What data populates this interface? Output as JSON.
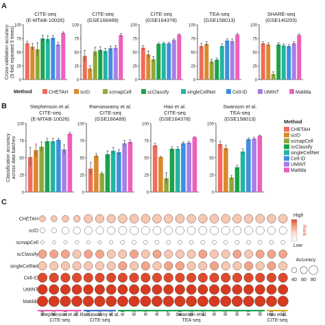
{
  "panel_letters": {
    "a": "A",
    "b": "B",
    "c": "C"
  },
  "methods": [
    "CHETAH",
    "scID",
    "scmapCell",
    "scClassify",
    "singleCellNet",
    "Cell-ID",
    "UMINT",
    "Matilda"
  ],
  "method_colors": [
    "#f26b5b",
    "#d98a2b",
    "#8fa83a",
    "#1aa34a",
    "#22b5a2",
    "#3d8fe0",
    "#a77fe6",
    "#ee5fba"
  ],
  "legend_a": {
    "title": "Method"
  },
  "legend_b": {
    "title": "Method"
  },
  "chart_data": [
    {
      "type": "bar",
      "panel": "A",
      "ylabel": "Cross-validation accuracy\n(5-fold repeated 5 times)",
      "ylim": [
        0,
        100
      ],
      "yticks": [
        0,
        25,
        50,
        75,
        100
      ],
      "grid": false,
      "legend": "bottom",
      "groups": [
        {
          "title": [
            "CITE-seq",
            "(E-MTAB-10026)"
          ],
          "values": [
            66,
            60,
            55,
            75,
            74,
            76,
            64,
            85
          ],
          "errors": [
            4,
            6,
            12,
            6,
            6,
            4,
            4,
            2
          ]
        },
        {
          "title": [
            "CITE-seq",
            "(GSE166489)"
          ],
          "values": [
            43,
            20,
            51,
            54,
            52,
            57,
            58,
            81
          ],
          "errors": [
            10,
            5,
            8,
            6,
            5,
            4,
            4,
            3
          ]
        },
        {
          "title": [
            "CITE-seq",
            "(GSE164378)"
          ],
          "values": [
            58,
            46,
            37,
            65,
            66,
            66,
            72,
            82
          ],
          "errors": [
            4,
            6,
            5,
            2,
            2,
            2,
            2,
            1
          ]
        },
        {
          "title": [
            "TEA-seq",
            "(GSE158013)"
          ],
          "values": [
            61,
            65,
            33,
            36,
            61,
            71,
            70,
            82
          ],
          "errors": [
            5,
            4,
            4,
            3,
            4,
            3,
            4,
            2
          ]
        },
        {
          "title": [
            "SHARE-seq",
            "(GSE140203)"
          ],
          "values": [
            66,
            64,
            10,
            64,
            62,
            61,
            66,
            81
          ],
          "errors": [
            3,
            3,
            4,
            3,
            3,
            3,
            3,
            2
          ]
        }
      ]
    },
    {
      "type": "bar",
      "panel": "B",
      "ylabel": "Classification accuracy\nacross data batches",
      "ylim": [
        0,
        100
      ],
      "yticks": [
        0,
        25,
        50,
        75,
        100
      ],
      "grid": false,
      "legend": "right",
      "groups": [
        {
          "title": [
            "Stephenson et al.",
            "CITE-seq",
            "(E-MTAB-10026)"
          ],
          "values": [
            51,
            61,
            66,
            74,
            74,
            76,
            62,
            85
          ],
          "errors": [
            14,
            9,
            7,
            4,
            4,
            2,
            7,
            2
          ]
        },
        {
          "title": [
            "Ramaswamy et al.",
            "CITE-seq",
            "(GSE166489)"
          ],
          "values": [
            34,
            53,
            27,
            55,
            60,
            58,
            71,
            73
          ],
          "errors": [
            9,
            3,
            2,
            5,
            5,
            4,
            4,
            3
          ]
        },
        {
          "title": [
            "Hao et al.",
            "CITE-seq",
            "(GSE164378)"
          ],
          "values": [
            68,
            51,
            20,
            63,
            63,
            71,
            72,
            80
          ],
          "errors": [
            3,
            1,
            8,
            3,
            3,
            2,
            2,
            1
          ]
        },
        {
          "title": [
            "Swanson et al.",
            "TEA-seq",
            "(GSE158013)"
          ],
          "values": [
            70,
            64,
            21,
            36,
            59,
            77,
            78,
            82
          ],
          "errors": [
            4,
            4,
            3,
            3,
            4,
            2,
            2,
            1
          ]
        }
      ]
    },
    {
      "type": "heatmap",
      "panel": "C",
      "rows": [
        "CHETAH",
        "scID",
        "scmapCell",
        "scClassify",
        "singleCellNet",
        "Cell-ID",
        "UMINT",
        "Matilda"
      ],
      "columns": [
        "B1",
        "B2",
        "B1",
        "B3",
        "B1",
        "B2",
        "B3",
        "B1",
        "B2",
        "B3",
        "B4",
        "B5",
        "B1",
        "B2",
        "B3",
        "B4",
        "B5",
        "B6",
        "B7",
        "B8",
        "B1",
        "B2"
      ],
      "column_groups": [
        {
          "label": [
            "Stephenson et al.",
            "CITE-seq"
          ],
          "start": 0,
          "end": 3,
          "color": "#ee5fba"
        },
        {
          "label": [
            "Ramaswamy et al.",
            "CITE-seq"
          ],
          "start": 4,
          "end": 6,
          "color": "#3d6fd0"
        },
        {
          "label": [
            "Swanson et al.",
            "TEA-seq"
          ],
          "start": 7,
          "end": 19,
          "color": "#1aa34a"
        },
        {
          "label": [
            "Hao et al.",
            "CITE-seq"
          ],
          "start": 20,
          "end": 21,
          "color": "#d9a52b"
        }
      ],
      "rank_legend": {
        "title": "Rank",
        "high": "High",
        "low": "Low",
        "colors": [
          "#ffffff",
          "#fbe2d6",
          "#f5a48a",
          "#e04a2c"
        ]
      },
      "accuracy_legend": {
        "title": "Accuracy",
        "values": [
          40,
          60,
          80
        ]
      },
      "rank_values": [
        [
          3,
          3,
          3,
          3,
          3,
          3,
          3,
          3,
          3,
          3,
          3,
          3,
          3,
          3,
          3,
          3,
          3,
          3,
          3,
          3,
          3,
          3
        ],
        [
          1,
          1,
          1,
          1,
          1,
          1,
          1,
          1,
          1,
          1,
          1,
          1,
          1,
          1,
          1,
          1,
          1,
          1,
          1,
          1,
          1,
          1
        ],
        [
          1,
          1,
          1,
          1,
          1,
          1,
          1,
          1,
          1,
          1,
          1,
          1,
          1,
          1,
          1,
          1,
          1,
          1,
          1,
          1,
          1,
          1
        ],
        [
          4,
          4,
          4,
          3,
          4,
          4,
          3,
          3,
          4,
          3,
          4,
          3,
          3,
          3,
          4,
          3,
          3,
          4,
          3,
          4,
          4,
          4
        ],
        [
          3,
          3,
          3,
          3,
          3,
          3,
          3,
          4,
          3,
          4,
          3,
          4,
          4,
          3,
          3,
          4,
          3,
          3,
          4,
          3,
          4,
          3
        ],
        [
          7,
          7,
          7,
          7,
          7,
          7,
          7,
          7,
          7,
          7,
          7,
          7,
          7,
          7,
          7,
          7,
          7,
          7,
          7,
          7,
          7,
          7
        ],
        [
          8,
          8,
          8,
          8,
          8,
          8,
          8,
          8,
          8,
          8,
          8,
          8,
          8,
          8,
          8,
          8,
          8,
          8,
          8,
          8,
          8,
          8
        ],
        [
          8,
          8,
          8,
          8,
          8,
          8,
          8,
          8,
          8,
          8,
          8,
          8,
          8,
          8,
          8,
          8,
          8,
          8,
          8,
          8,
          8,
          8
        ]
      ],
      "accuracy_values": [
        [
          40,
          40,
          45,
          45,
          62,
          62,
          62,
          65,
          65,
          65,
          65,
          65,
          65,
          65,
          65,
          65,
          65,
          65,
          65,
          65,
          65,
          65
        ],
        [
          30,
          30,
          50,
          50,
          55,
          55,
          55,
          60,
          60,
          60,
          60,
          60,
          60,
          60,
          60,
          60,
          60,
          60,
          60,
          60,
          55,
          55
        ],
        [
          15,
          15,
          15,
          15,
          15,
          15,
          15,
          20,
          20,
          20,
          20,
          20,
          20,
          20,
          20,
          20,
          20,
          20,
          20,
          20,
          20,
          20
        ],
        [
          60,
          60,
          60,
          60,
          60,
          60,
          60,
          60,
          60,
          60,
          60,
          60,
          60,
          60,
          60,
          60,
          60,
          60,
          60,
          60,
          60,
          60
        ],
        [
          62,
          62,
          62,
          62,
          62,
          62,
          62,
          62,
          62,
          62,
          62,
          62,
          62,
          62,
          62,
          62,
          62,
          62,
          62,
          62,
          62,
          62
        ],
        [
          70,
          70,
          70,
          70,
          70,
          70,
          70,
          70,
          70,
          70,
          70,
          70,
          70,
          70,
          70,
          70,
          70,
          70,
          70,
          70,
          70,
          70
        ],
        [
          75,
          75,
          75,
          75,
          75,
          75,
          75,
          75,
          75,
          75,
          75,
          75,
          75,
          75,
          75,
          75,
          75,
          75,
          75,
          75,
          75,
          75
        ],
        [
          82,
          82,
          82,
          82,
          82,
          82,
          82,
          82,
          82,
          82,
          82,
          82,
          82,
          82,
          82,
          82,
          82,
          82,
          82,
          82,
          82,
          82
        ]
      ]
    }
  ]
}
